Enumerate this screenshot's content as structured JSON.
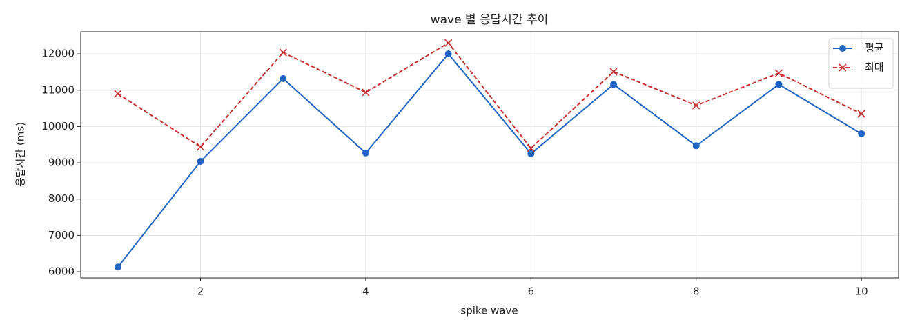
{
  "chart_data": {
    "type": "line",
    "title": "wave 별 응답시간 추이",
    "xlabel": "spike wave",
    "ylabel": "응답시간 (ms)",
    "x": [
      1,
      2,
      3,
      4,
      5,
      6,
      7,
      8,
      9,
      10
    ],
    "series": [
      {
        "name": "평균",
        "color": "#1f64c0",
        "marker": "o",
        "linestyle": "solid",
        "values": [
          6130,
          9040,
          11320,
          9270,
          12000,
          9250,
          11160,
          9470,
          11160,
          9800
        ]
      },
      {
        "name": "최대",
        "color": "#c62f2f",
        "marker": "x",
        "linestyle": "dashed",
        "values": [
          10900,
          9440,
          12040,
          10940,
          12300,
          9400,
          11510,
          10580,
          11470,
          10350
        ]
      }
    ],
    "xlim": [
      0.55,
      10.45
    ],
    "xticks": [
      2,
      4,
      6,
      8,
      10
    ],
    "ylim": [
      5830,
      12610
    ],
    "yticks": [
      6000,
      7000,
      8000,
      9000,
      10000,
      11000,
      12000
    ],
    "grid": true,
    "legend": "upper right"
  }
}
